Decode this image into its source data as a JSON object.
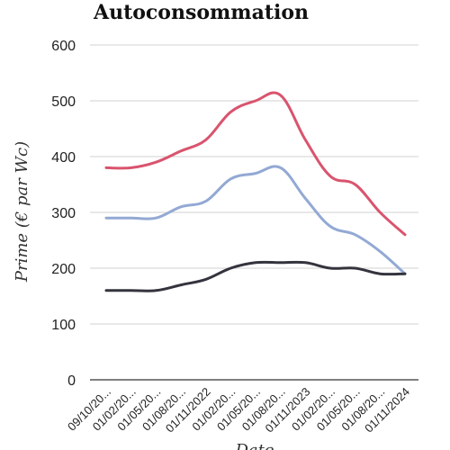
{
  "chart_data": {
    "type": "line",
    "title": "Autoconsommation",
    "ylabel": "Prime (€ par Wc)",
    "xlabel": "Date",
    "ylim": [
      0,
      600
    ],
    "yticks": [
      0,
      100,
      200,
      300,
      400,
      500,
      600
    ],
    "grid": "horizontal",
    "categories": [
      "09/10/20...",
      "01/02/20...",
      "01/05/20...",
      "01/08/20...",
      "01/11/2022",
      "01/02/20...",
      "01/05/20...",
      "01/08/20...",
      "01/11/2023",
      "01/02/20...",
      "01/05/20...",
      "01/08/20...",
      "01/11/2024"
    ],
    "series": [
      {
        "color": "#d9546e",
        "values": [
          380,
          380,
          390,
          410,
          430,
          480,
          500,
          510,
          430,
          365,
          350,
          300,
          260
        ]
      },
      {
        "color": "#93a9d4",
        "values": [
          290,
          290,
          290,
          310,
          320,
          360,
          370,
          380,
          325,
          275,
          260,
          230,
          190
        ]
      },
      {
        "color": "#34343e",
        "values": [
          160,
          160,
          160,
          170,
          180,
          200,
          210,
          210,
          210,
          200,
          200,
          190,
          190
        ]
      }
    ]
  }
}
